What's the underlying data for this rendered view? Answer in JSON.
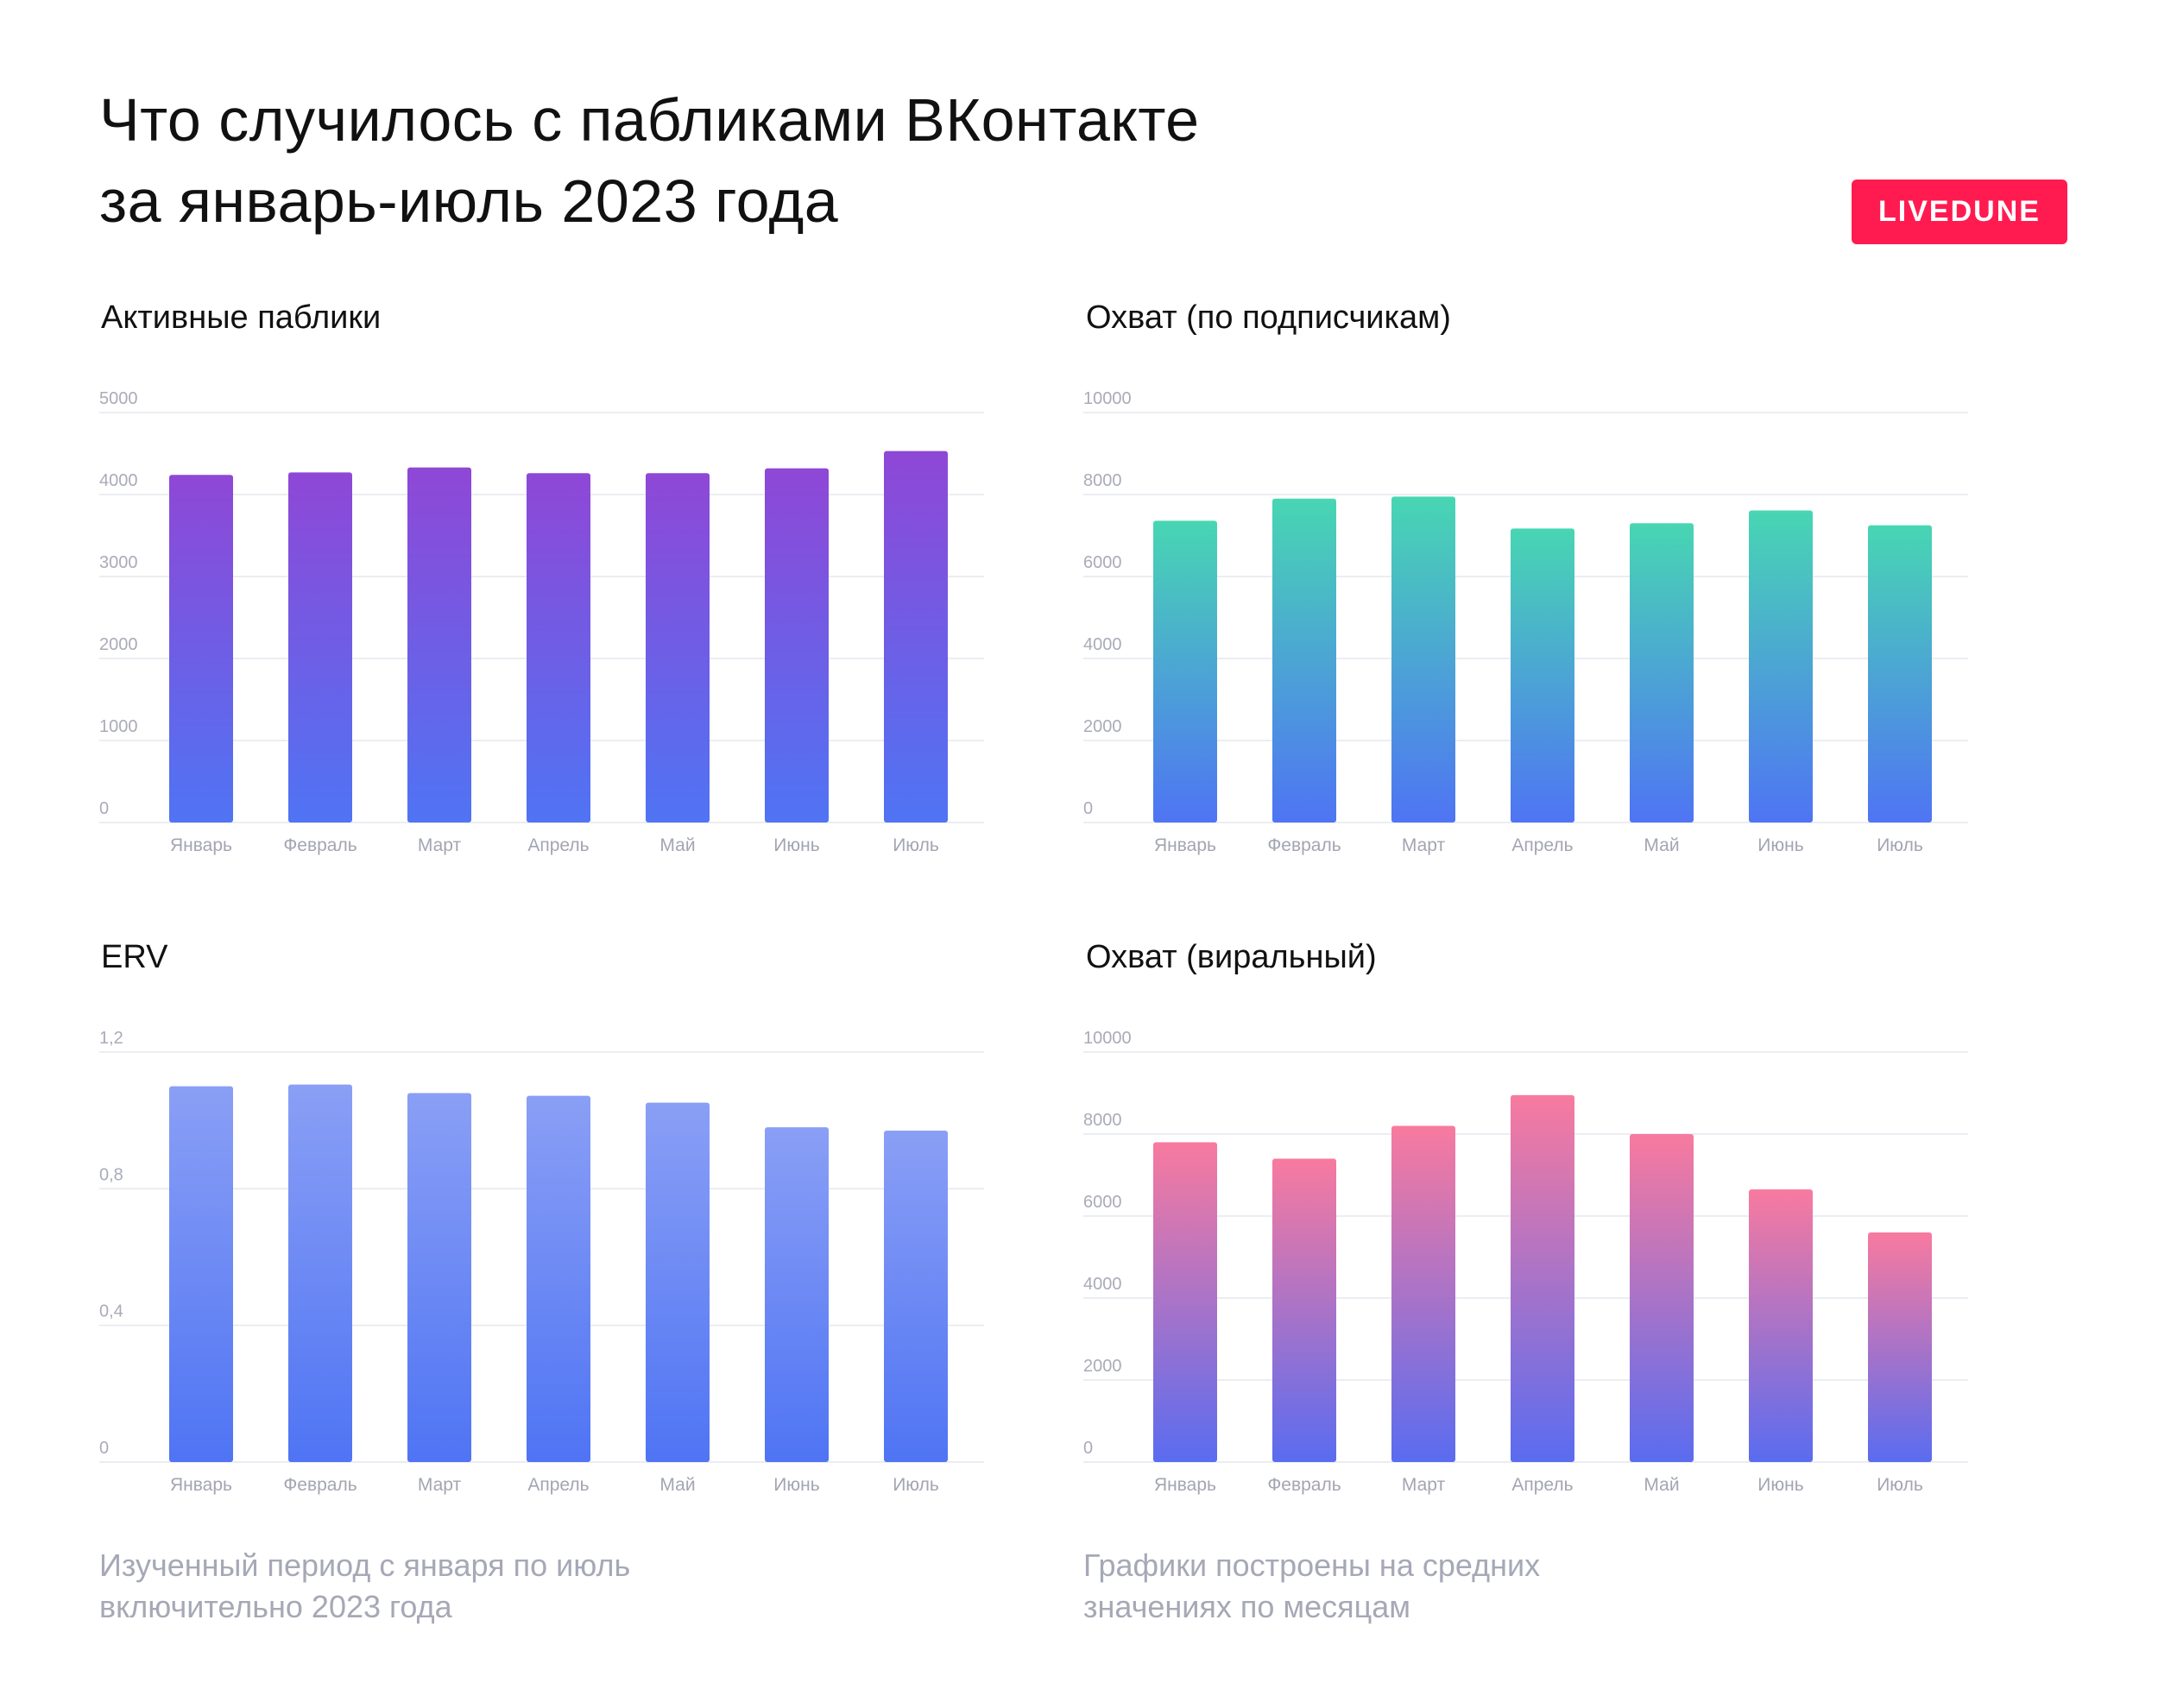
{
  "header": {
    "title_line1": "Что случилось с пабликами ВКонтакте",
    "title_line2": "за январь-июль 2023 года",
    "brand": "LIVEDUNE"
  },
  "charts": {
    "active": {
      "title": "Активные паблики"
    },
    "reach_subs": {
      "title": "Охват (по подписчикам)"
    },
    "erv": {
      "title": "ERV"
    },
    "reach_viral": {
      "title": "Охват (виральный)"
    }
  },
  "footnotes": {
    "left_line1": "Изученный период с января по июль",
    "left_line2": "включительно 2023 года",
    "right_line1": "Графики построены на средних",
    "right_line2": "значениях по месяцам"
  },
  "colors": {
    "purple_top": "#8f47d6",
    "purple_bottom": "#4f74f4",
    "teal_top": "#48d6b3",
    "teal_bottom": "#4f74f4",
    "blue_top": "#8a9ff5",
    "blue_bottom": "#4f74f4",
    "pink_top": "#f87a9f",
    "pink_bottom": "#5a6cf0",
    "brand": "#ff1b50"
  },
  "chart_data": [
    {
      "id": "active",
      "type": "bar",
      "title": "Активные паблики",
      "categories": [
        "Январь",
        "Февраль",
        "Март",
        "Апрель",
        "Май",
        "Июнь",
        "Июль"
      ],
      "values": [
        4240,
        4270,
        4330,
        4260,
        4260,
        4320,
        4530
      ],
      "ylim": [
        0,
        5000
      ],
      "yticks": [
        "0",
        "1000",
        "2000",
        "3000",
        "4000",
        "5000"
      ],
      "grid": true
    },
    {
      "id": "reach_subs",
      "type": "bar",
      "title": "Охват (по подписчикам)",
      "categories": [
        "Январь",
        "Февраль",
        "Март",
        "Апрель",
        "Май",
        "Июнь",
        "Июль"
      ],
      "values": [
        7360,
        7900,
        7950,
        7170,
        7300,
        7610,
        7250
      ],
      "ylim": [
        0,
        10000
      ],
      "yticks": [
        "0",
        "2000",
        "4000",
        "6000",
        "8000",
        "10000"
      ],
      "grid": true
    },
    {
      "id": "erv",
      "type": "bar",
      "title": "ERV",
      "categories": [
        "Январь",
        "Февраль",
        "Март",
        "Апрель",
        "Май",
        "Июнь",
        "Июль"
      ],
      "values": [
        1.1,
        1.105,
        1.08,
        1.072,
        1.052,
        0.98,
        0.97
      ],
      "ylim": [
        0,
        1.2
      ],
      "yticks": [
        "0",
        "0,4",
        "0,8",
        "1,2"
      ],
      "grid": true
    },
    {
      "id": "reach_viral",
      "type": "bar",
      "title": "Охват (виральный)",
      "categories": [
        "Январь",
        "Февраль",
        "Март",
        "Апрель",
        "Май",
        "Июнь",
        "Июль"
      ],
      "values": [
        7800,
        7400,
        8200,
        8950,
        8000,
        6650,
        5600
      ],
      "ylim": [
        0,
        10000
      ],
      "yticks": [
        "0",
        "2000",
        "4000",
        "6000",
        "8000",
        "10000"
      ],
      "grid": true
    }
  ]
}
